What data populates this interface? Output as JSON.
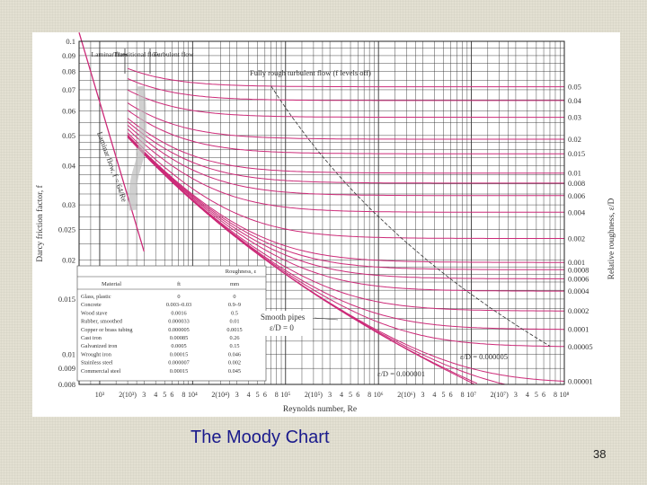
{
  "slide": {
    "caption": "The Moody Chart",
    "number": "38"
  },
  "chart_data": {
    "type": "line",
    "xlabel": "Reynolds number, Re",
    "ylabel": "Darcy friction factor, f",
    "ylabel_right": "Relative roughness, ε/D",
    "xscale": "log",
    "yscale": "log",
    "xlim": [
      600,
      100000000
    ],
    "ylim": [
      0.008,
      0.1
    ],
    "grid": true,
    "x_ticks": [
      "10³",
      "2(10³)",
      "3",
      "4",
      "5",
      "6",
      "8",
      "10⁴",
      "2(10⁴)",
      "3",
      "4",
      "5",
      "6",
      "8",
      "10⁵",
      "2(10⁵)",
      "3",
      "4",
      "5",
      "6",
      "8",
      "10⁶",
      "2(10⁶)",
      "3",
      "4",
      "5",
      "6",
      "8",
      "10⁷",
      "2(10⁷)",
      "3",
      "4",
      "5",
      "6",
      "8",
      "10⁸"
    ],
    "x_tick_values": [
      1000,
      2000,
      3000,
      4000,
      5000,
      6000,
      8000,
      10000,
      20000,
      30000,
      40000,
      50000,
      60000,
      80000,
      100000,
      200000,
      300000,
      400000,
      500000,
      600000,
      800000,
      1000000,
      2000000,
      3000000,
      4000000,
      5000000,
      6000000,
      8000000,
      10000000,
      20000000,
      30000000,
      40000000,
      50000000,
      60000000,
      80000000,
      100000000
    ],
    "y_ticks": [
      "0.1",
      "0.09",
      "0.08",
      "0.07",
      "0.06",
      "0.05",
      "0.04",
      "0.03",
      "0.025",
      "0.02",
      "0.015",
      "0.01",
      "0.009",
      "0.008"
    ],
    "y_tick_values": [
      0.1,
      0.09,
      0.08,
      0.07,
      0.06,
      0.05,
      0.04,
      0.03,
      0.025,
      0.02,
      0.015,
      0.01,
      0.009,
      0.008
    ],
    "roughness_labels": [
      "0.05",
      "0.04",
      "0.03",
      "0.02",
      "0.015",
      "0.01",
      "0.008",
      "0.006",
      "0.004",
      "0.002",
      "0.001",
      "0.0008",
      "0.0006",
      "0.0004",
      "0.0002",
      "0.0001",
      "0.00005",
      "0.00001"
    ],
    "series": [
      {
        "roughness": 0.05
      },
      {
        "roughness": 0.04
      },
      {
        "roughness": 0.03
      },
      {
        "roughness": 0.02
      },
      {
        "roughness": 0.015
      },
      {
        "roughness": 0.01
      },
      {
        "roughness": 0.008
      },
      {
        "roughness": 0.006
      },
      {
        "roughness": 0.004
      },
      {
        "roughness": 0.002
      },
      {
        "roughness": 0.001
      },
      {
        "roughness": 0.0008
      },
      {
        "roughness": 0.0006
      },
      {
        "roughness": 0.0004
      },
      {
        "roughness": 0.0002
      },
      {
        "roughness": 0.0001
      },
      {
        "roughness": 5e-05
      },
      {
        "roughness": 1e-05
      },
      {
        "roughness": 5e-06
      },
      {
        "roughness": 1e-06
      },
      {
        "roughness": 0
      }
    ],
    "laminar": {
      "label": "Laminar flow, f = 64/Re",
      "x": [
        600,
        3000
      ],
      "y": [
        0.1067,
        0.0213
      ]
    },
    "annotations": {
      "laminar_region": "Laminar flow",
      "transitional_region": "Transitional flow",
      "turbulent_region": "Turbulent flow",
      "fully_rough": "Fully rough turbulent flow (f levels off)",
      "smooth_pipes_1": "Smooth pipes",
      "smooth_pipes_2": "ε/D = 0",
      "ed_0000005": "ε/D = 0.000005",
      "ed_0000001": "ε/D = 0.000001"
    },
    "roughness_table": {
      "title": "Roughness, ε",
      "headers": [
        "Material",
        "ft",
        "mm"
      ],
      "rows": [
        [
          "Glass, plastic",
          "0",
          "0"
        ],
        [
          "Concrete",
          "0.003–0.03",
          "0.9–9"
        ],
        [
          "Wood stave",
          "0.0016",
          "0.5"
        ],
        [
          "Rubber, smoothed",
          "0.000033",
          "0.01"
        ],
        [
          "Copper or brass tubing",
          "0.000005",
          "0.0015"
        ],
        [
          "Cast iron",
          "0.00085",
          "0.26"
        ],
        [
          "Galvanized iron",
          "0.0005",
          "0.15"
        ],
        [
          "Wrought iron",
          "0.00015",
          "0.046"
        ],
        [
          "Stainless steel",
          "0.000007",
          "0.002"
        ],
        [
          "Commercial steel",
          "0.00015",
          "0.045"
        ]
      ]
    }
  }
}
